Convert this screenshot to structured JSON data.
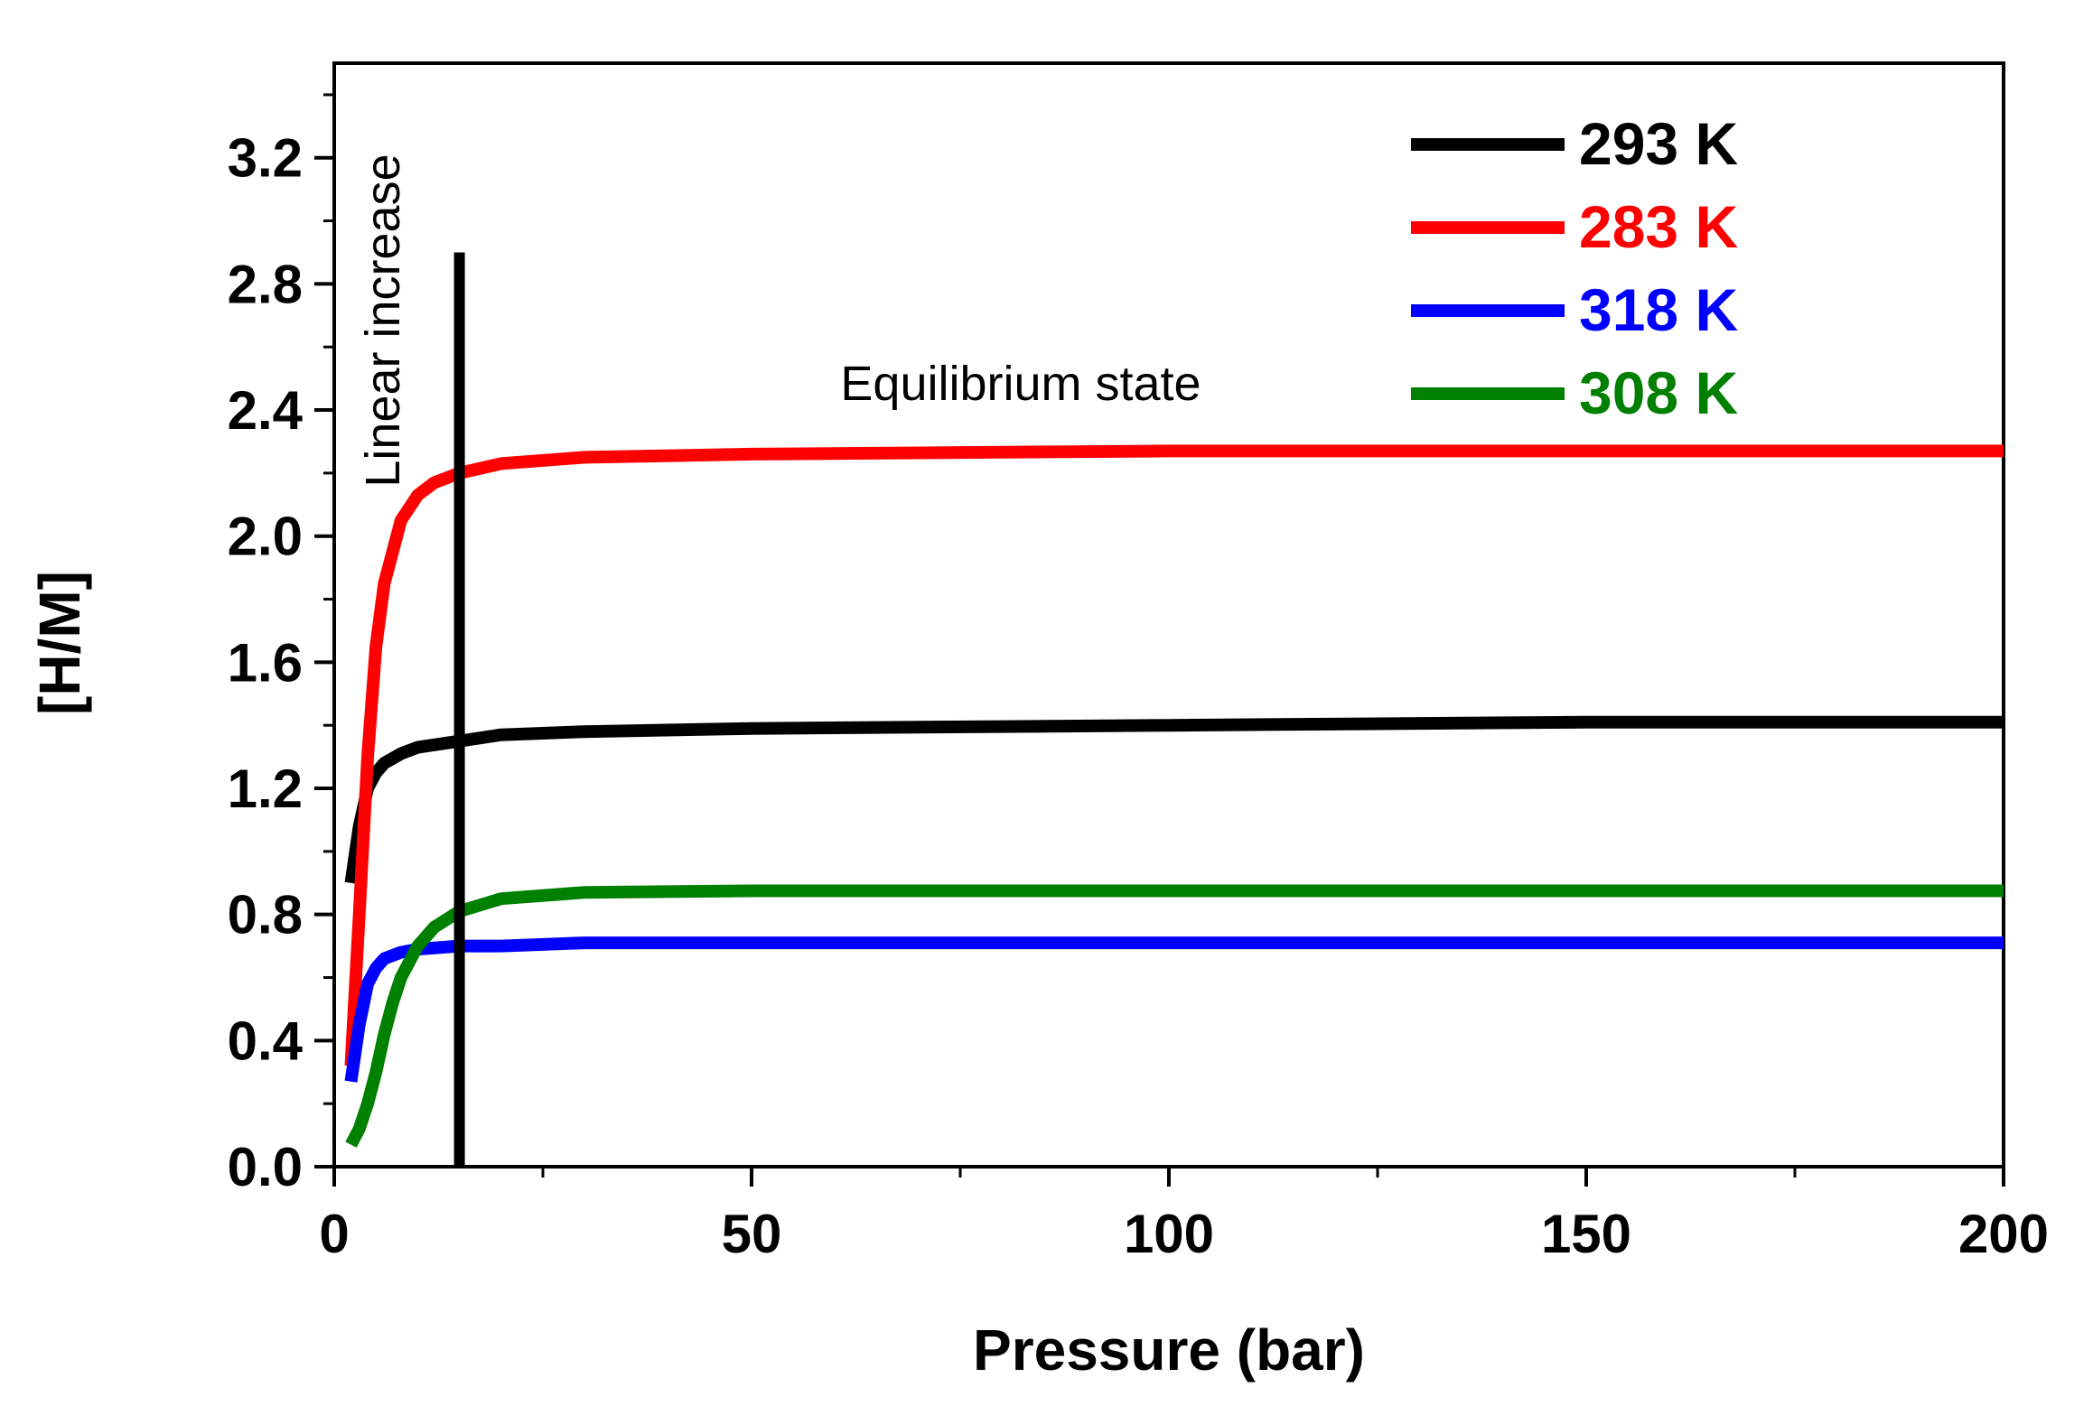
{
  "chart_data": {
    "type": "line",
    "title": "",
    "xlabel": "Pressure (bar)",
    "ylabel": "[H/M]",
    "xlim": [
      0,
      200
    ],
    "ylim": [
      0,
      3.5
    ],
    "xticks": [
      0,
      50,
      100,
      150,
      200
    ],
    "xtick_labels": [
      "0",
      "50",
      "100",
      "150",
      "200"
    ],
    "yticks": [
      0.0,
      0.4,
      0.8,
      1.2,
      1.6,
      2.0,
      2.4,
      2.8,
      3.2
    ],
    "ytick_labels": [
      "0.0",
      "0.4",
      "0.8",
      "1.2",
      "1.6",
      "2.0",
      "2.4",
      "2.8",
      "3.2"
    ],
    "legend_position": "top-right",
    "grid": false,
    "series": [
      {
        "name": "293 K",
        "color": "#000000",
        "x": [
          2,
          3,
          4,
          5,
          6,
          8,
          10,
          15,
          20,
          30,
          50,
          100,
          150,
          200
        ],
        "y": [
          0.9,
          1.08,
          1.2,
          1.25,
          1.28,
          1.31,
          1.33,
          1.35,
          1.37,
          1.38,
          1.39,
          1.4,
          1.41,
          1.41
        ]
      },
      {
        "name": "283 K",
        "color": "#ff0000",
        "x": [
          2,
          3,
          4,
          5,
          6,
          8,
          10,
          12,
          15,
          20,
          30,
          50,
          100,
          150,
          200
        ],
        "y": [
          0.32,
          0.8,
          1.3,
          1.65,
          1.85,
          2.05,
          2.13,
          2.17,
          2.2,
          2.23,
          2.25,
          2.26,
          2.27,
          2.27,
          2.27
        ]
      },
      {
        "name": "318 K",
        "color": "#0000ff",
        "x": [
          2,
          3,
          4,
          5,
          6,
          8,
          10,
          15,
          20,
          30,
          50,
          100,
          150,
          200
        ],
        "y": [
          0.27,
          0.45,
          0.58,
          0.63,
          0.66,
          0.68,
          0.69,
          0.7,
          0.7,
          0.71,
          0.71,
          0.71,
          0.71,
          0.71
        ]
      },
      {
        "name": "308 K",
        "color": "#008000",
        "x": [
          2,
          3,
          4,
          5,
          6,
          7,
          8,
          10,
          12,
          15,
          20,
          30,
          50,
          100,
          150,
          200
        ],
        "y": [
          0.07,
          0.12,
          0.2,
          0.3,
          0.42,
          0.52,
          0.6,
          0.7,
          0.76,
          0.81,
          0.85,
          0.87,
          0.875,
          0.875,
          0.875,
          0.875
        ]
      }
    ],
    "vertical_marker": {
      "x": 15,
      "y_from": 0.0,
      "y_to": 2.9,
      "color": "#000000"
    },
    "annotations": [
      {
        "text": "Linear increase",
        "x": 6,
        "y": 2.7,
        "orientation": "vertical"
      },
      {
        "text": "Equilibrium state",
        "x": 82,
        "y": 2.47,
        "orientation": "horizontal"
      }
    ]
  }
}
